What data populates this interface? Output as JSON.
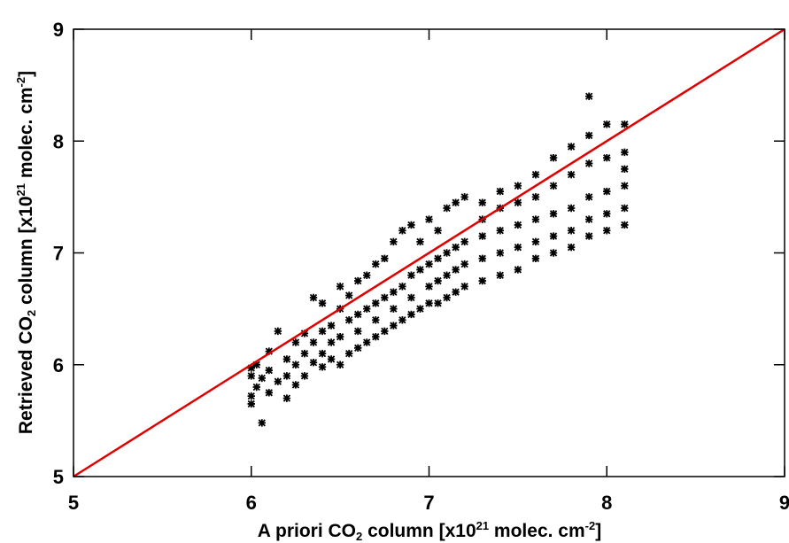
{
  "chart_data": {
    "type": "scatter",
    "xlabel": [
      "A priori CO",
      "2",
      " column [x10",
      "21",
      " molec. cm",
      "-2",
      "]"
    ],
    "ylabel": [
      "Retrieved CO",
      "2",
      " column [x10",
      "21",
      " molec. cm",
      "-2",
      "]"
    ],
    "xlim": [
      5,
      9
    ],
    "ylim": [
      5,
      9
    ],
    "xticks": [
      5,
      6,
      7,
      8,
      9
    ],
    "yticks": [
      5,
      6,
      7,
      8,
      9
    ],
    "color": "#000000",
    "reference_line": {
      "x": [
        5,
        9
      ],
      "y": [
        5,
        9
      ],
      "color": "#e00000"
    },
    "x": [
      6.0,
      6.0,
      6.0,
      6.0,
      6.03,
      6.03,
      6.06,
      6.06,
      6.1,
      6.1,
      6.1,
      6.15,
      6.15,
      6.2,
      6.2,
      6.2,
      6.25,
      6.25,
      6.25,
      6.3,
      6.3,
      6.3,
      6.35,
      6.35,
      6.35,
      6.4,
      6.4,
      6.4,
      6.4,
      6.45,
      6.45,
      6.45,
      6.5,
      6.5,
      6.5,
      6.5,
      6.55,
      6.55,
      6.55,
      6.6,
      6.6,
      6.6,
      6.6,
      6.65,
      6.65,
      6.65,
      6.7,
      6.7,
      6.7,
      6.7,
      6.75,
      6.75,
      6.75,
      6.8,
      6.8,
      6.8,
      6.8,
      6.85,
      6.85,
      6.85,
      6.9,
      6.9,
      6.9,
      6.9,
      6.95,
      6.95,
      6.95,
      7.0,
      7.0,
      7.0,
      7.0,
      7.05,
      7.05,
      7.05,
      7.05,
      7.1,
      7.1,
      7.1,
      7.1,
      7.15,
      7.15,
      7.15,
      7.15,
      7.2,
      7.2,
      7.2,
      7.2,
      7.3,
      7.3,
      7.3,
      7.3,
      7.3,
      7.4,
      7.4,
      7.4,
      7.4,
      7.4,
      7.5,
      7.5,
      7.5,
      7.5,
      7.5,
      7.6,
      7.6,
      7.6,
      7.6,
      7.6,
      7.7,
      7.7,
      7.7,
      7.7,
      7.7,
      7.8,
      7.8,
      7.8,
      7.8,
      7.8,
      7.9,
      7.9,
      7.9,
      7.9,
      7.9,
      7.9,
      8.0,
      8.0,
      8.0,
      8.0,
      8.0,
      8.1,
      8.1,
      8.1,
      8.1,
      8.1,
      8.1
    ],
    "y": [
      5.72,
      5.65,
      5.9,
      5.97,
      5.8,
      6.0,
      5.48,
      5.88,
      5.75,
      5.95,
      6.12,
      5.85,
      6.3,
      5.7,
      6.05,
      5.9,
      6.0,
      6.2,
      5.82,
      5.9,
      6.28,
      6.1,
      6.02,
      6.2,
      6.6,
      5.98,
      6.3,
      6.55,
      6.1,
      6.05,
      6.35,
      6.2,
      6.0,
      6.25,
      6.5,
      6.7,
      6.1,
      6.4,
      6.62,
      6.15,
      6.45,
      6.75,
      6.3,
      6.2,
      6.5,
      6.8,
      6.25,
      6.55,
      6.9,
      6.4,
      6.3,
      6.6,
      6.95,
      6.35,
      6.65,
      7.1,
      6.5,
      6.4,
      6.7,
      7.2,
      6.45,
      6.8,
      7.25,
      6.6,
      6.5,
      6.85,
      7.1,
      6.55,
      6.9,
      7.3,
      6.7,
      6.55,
      6.95,
      7.2,
      6.75,
      6.6,
      7.0,
      7.4,
      6.8,
      6.65,
      7.05,
      7.45,
      6.85,
      6.7,
      7.1,
      7.5,
      6.9,
      6.75,
      7.15,
      7.45,
      6.95,
      7.3,
      6.8,
      7.2,
      7.55,
      7.0,
      7.4,
      6.85,
      7.25,
      7.6,
      7.05,
      7.45,
      6.95,
      7.3,
      7.7,
      7.1,
      7.5,
      7.0,
      7.35,
      7.85,
      7.15,
      7.6,
      7.05,
      7.4,
      7.95,
      7.2,
      7.7,
      7.15,
      7.5,
      8.05,
      7.3,
      7.8,
      8.4,
      7.2,
      7.55,
      8.15,
      7.35,
      7.85,
      7.25,
      7.6,
      8.15,
      7.4,
      7.9,
      7.75
    ]
  }
}
